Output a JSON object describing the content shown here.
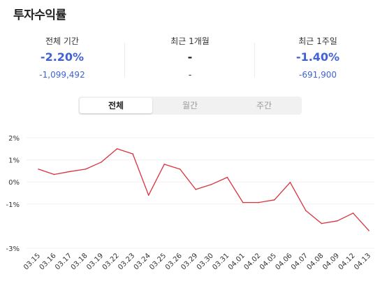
{
  "page": {
    "title": "투자수익률"
  },
  "summary": [
    {
      "label": "전체 기간",
      "rate": "-2.20%",
      "amount": "-1,099,492"
    },
    {
      "label": "최근 1개월",
      "rate": "-",
      "amount": "-"
    },
    {
      "label": "최근 1주일",
      "rate": "-1.40%",
      "amount": "-691,900"
    }
  ],
  "tabs": [
    {
      "label": "전체",
      "active": true
    },
    {
      "label": "월간",
      "active": false
    },
    {
      "label": "주간",
      "active": false
    }
  ],
  "colors": {
    "accent": "#4161d8",
    "line": "#d9333d",
    "grid": "#f0f0f0"
  },
  "chart_data": {
    "type": "line",
    "categories": [
      "03.15",
      "03.16",
      "03.17",
      "03.18",
      "03.19",
      "03.22",
      "03.23",
      "03.24",
      "03.25",
      "03.26",
      "03.29",
      "03.30",
      "03.31",
      "04.01",
      "04.02",
      "04.05",
      "04.06",
      "04.07",
      "04.08",
      "04.09",
      "04.12",
      "04.13"
    ],
    "series": [
      {
        "values": [
          0.58,
          0.34,
          0.47,
          0.58,
          0.9,
          1.5,
          1.27,
          -0.6,
          0.8,
          0.58,
          -0.34,
          -0.11,
          0.21,
          -0.93,
          -0.93,
          -0.81,
          -0.02,
          -1.3,
          -1.88,
          -1.76,
          -1.41,
          -2.2
        ]
      }
    ],
    "yticks": [
      {
        "value": 2,
        "label": "2%"
      },
      {
        "value": 1,
        "label": "1%"
      },
      {
        "value": 0,
        "label": "0%"
      },
      {
        "value": -1,
        "label": "-1%"
      },
      {
        "value": -3,
        "label": "-3%"
      }
    ],
    "ylim": [
      -3,
      2
    ],
    "grid": true,
    "title": "",
    "xlabel": "",
    "ylabel": ""
  }
}
